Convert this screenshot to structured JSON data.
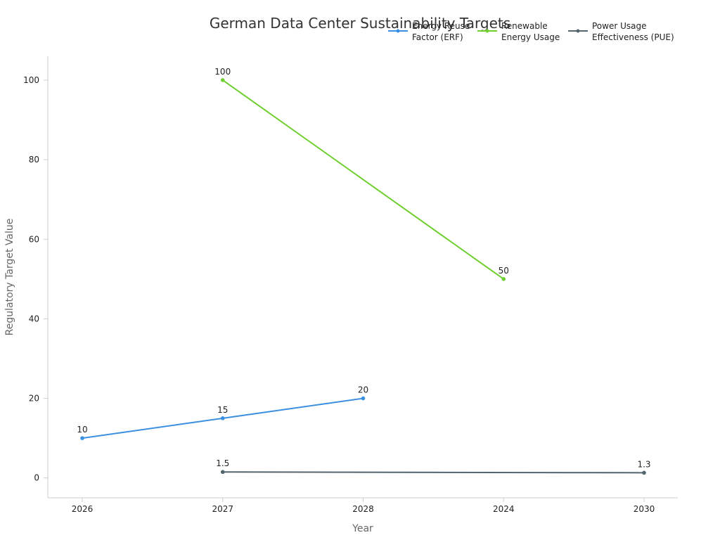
{
  "chart_data": {
    "type": "line",
    "title": "German Data Center Sustainability Targets",
    "xlabel": "Year",
    "ylabel": "Regulatory Target Value",
    "categories": [
      "2026",
      "2027",
      "2028",
      "2024",
      "2030"
    ],
    "ylim": [
      -5,
      106
    ],
    "yticks": [
      0,
      20,
      40,
      60,
      80,
      100
    ],
    "legend_position": "top-right",
    "series": [
      {
        "name": "Energy Reuse Factor (ERF)",
        "legend_lines": [
          "Energy Reuse",
          "Factor (ERF)"
        ],
        "color": "#3b8fe0",
        "points": [
          {
            "category": "2026",
            "value": 10,
            "label": "10"
          },
          {
            "category": "2027",
            "value": 15,
            "label": "15"
          },
          {
            "category": "2028",
            "value": 20,
            "label": "20"
          }
        ]
      },
      {
        "name": "Renewable Energy Usage",
        "legend_lines": [
          "Renewable",
          "Energy Usage"
        ],
        "color": "#6fcf2e",
        "points": [
          {
            "category": "2027",
            "value": 100,
            "label": "100"
          },
          {
            "category": "2024",
            "value": 50,
            "label": "50"
          }
        ]
      },
      {
        "name": "Power Usage Effectiveness (PUE)",
        "legend_lines": [
          "Power Usage",
          "Effectiveness (PUE)"
        ],
        "color": "#546570",
        "points": [
          {
            "category": "2027",
            "value": 1.5,
            "label": "1.5"
          },
          {
            "category": "2030",
            "value": 1.3,
            "label": "1.3"
          }
        ]
      }
    ]
  }
}
